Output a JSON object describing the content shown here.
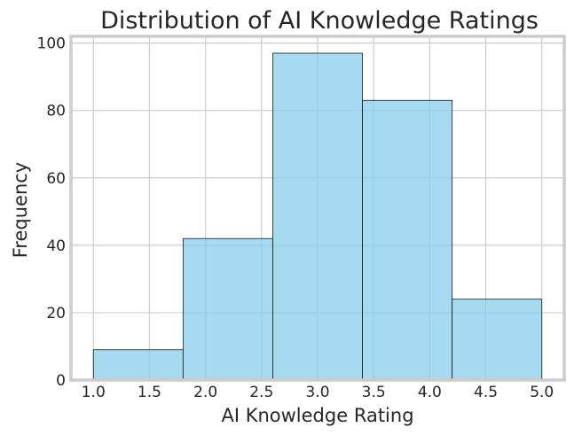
{
  "chart_data": {
    "type": "bar",
    "subtype": "histogram",
    "title": "Distribution of AI Knowledge Ratings",
    "xlabel": "AI Knowledge Rating",
    "ylabel": "Frequency",
    "bins": [
      {
        "start": 1.0,
        "end": 1.8,
        "value": 9
      },
      {
        "start": 1.8,
        "end": 2.6,
        "value": 42
      },
      {
        "start": 2.6,
        "end": 3.4,
        "value": 97
      },
      {
        "start": 3.4,
        "end": 4.2,
        "value": 83
      },
      {
        "start": 4.2,
        "end": 5.0,
        "value": 24
      }
    ],
    "x_ticks": [
      "1.0",
      "1.5",
      "2.0",
      "2.5",
      "3.0",
      "3.5",
      "4.0",
      "4.5",
      "5.0"
    ],
    "y_ticks": [
      "0",
      "20",
      "40",
      "60",
      "80",
      "100"
    ],
    "xlim": [
      0.8,
      5.2
    ],
    "ylim": [
      0,
      102
    ],
    "grid": true,
    "bar_color": "#87CEEB",
    "bar_edge_color": "#1a1a1a",
    "grid_color": "#cccccc"
  }
}
